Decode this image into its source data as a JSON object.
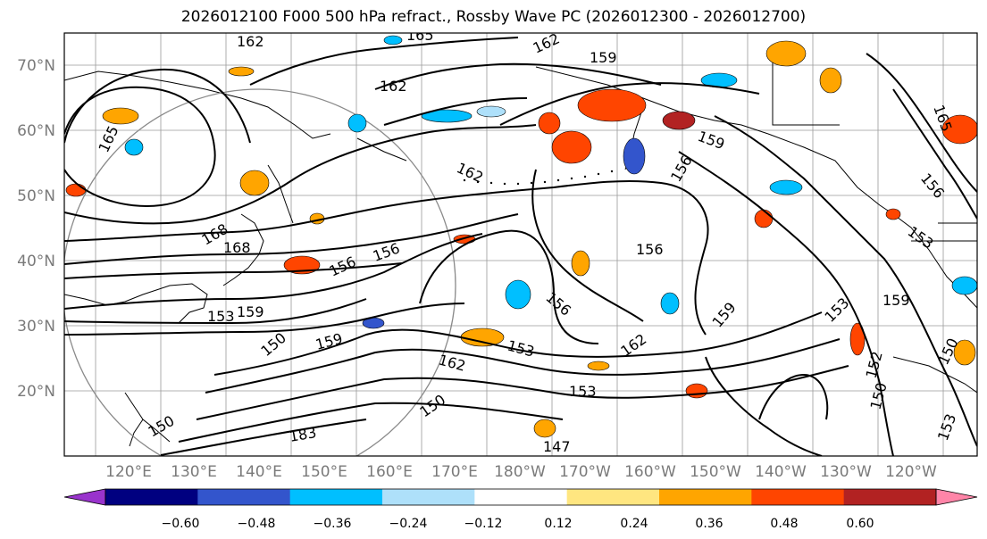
{
  "title": "2026012100 F000 500 hPa refract., Rossby Wave PC (2026012300 - 2026012700)",
  "lat_labels": [
    "70°N",
    "60°N",
    "50°N",
    "40°N",
    "30°N",
    "20°N"
  ],
  "lon_labels": [
    "120°E",
    "130°E",
    "140°E",
    "150°E",
    "160°E",
    "170°E",
    "180°W",
    "170°W",
    "160°W",
    "150°W",
    "140°W",
    "130°W",
    "120°W"
  ],
  "contour_labels": [
    "165",
    "162",
    "159",
    "156",
    "153",
    "150",
    "147",
    "168",
    "183",
    "165",
    "159",
    "156",
    "162",
    "153",
    "150",
    "156",
    "159",
    "162",
    "153",
    "156",
    "162",
    "159",
    "165",
    "156",
    "153",
    "150",
    "152",
    "159",
    "162",
    "150",
    "153",
    "150",
    "162",
    "168",
    "159",
    "156",
    "153"
  ],
  "colorbar": {
    "colors": [
      "#9933cc",
      "#000080",
      "#3355cc",
      "#00bfff",
      "#aee0fa",
      "#ffffff",
      "#ffe680",
      "#ffa500",
      "#ff4500",
      "#b22222",
      "#ff85a8"
    ],
    "tick_labels": [
      "−0.60",
      "−0.48",
      "−0.36",
      "−0.24",
      "−0.12",
      "0.12",
      "0.24",
      "0.36",
      "0.48",
      "0.60"
    ]
  }
}
